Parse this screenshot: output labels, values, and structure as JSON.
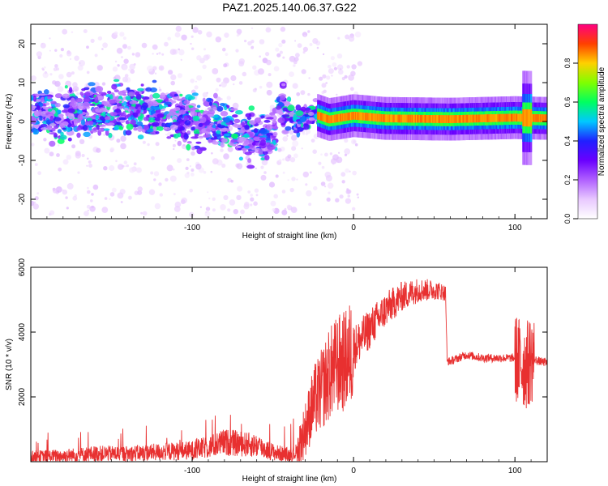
{
  "title": "PAZ1.2025.140.06.37.G22",
  "chart_data": [
    {
      "type": "heatmap",
      "xlabel": "Height of straight line (km)",
      "ylabel": "Frequency (Hz)",
      "xlim": [
        -200,
        120
      ],
      "ylim": [
        -25,
        25
      ],
      "xticks": [
        -100,
        0,
        100
      ],
      "yticks": [
        -20,
        -10,
        0,
        10,
        20
      ],
      "colorbar": {
        "label": "Normalized spectral amplitude",
        "range": [
          0.0,
          1.0
        ],
        "ticks": [
          "0.0",
          "0.2",
          "0.4",
          "0.6",
          "0.8"
        ],
        "colormap": [
          "#ffffff",
          "#e8c8ff",
          "#b060ff",
          "#6a00ff",
          "#2020ff",
          "#00c8ff",
          "#00ff60",
          "#80ff00",
          "#ffd000",
          "#ff4000",
          "#ff0080"
        ]
      },
      "ridge": [
        {
          "x": -200,
          "y": 2.0
        },
        {
          "x": -180,
          "y": 1.5
        },
        {
          "x": -160,
          "y": 3.0
        },
        {
          "x": -140,
          "y": 3.5
        },
        {
          "x": -120,
          "y": 2.0
        },
        {
          "x": -100,
          "y": 0.5
        },
        {
          "x": -80,
          "y": -1.0
        },
        {
          "x": -60,
          "y": -4.0
        },
        {
          "x": -50,
          "y": -4.5
        },
        {
          "x": -45,
          "y": 4.5
        },
        {
          "x": -35,
          "y": 0.0
        },
        {
          "x": -25,
          "y": 2.0
        },
        {
          "x": -15,
          "y": 0.5
        },
        {
          "x": 0,
          "y": 1.5
        },
        {
          "x": 20,
          "y": 0.8
        },
        {
          "x": 60,
          "y": 0.6
        },
        {
          "x": 100,
          "y": 1.0
        },
        {
          "x": 120,
          "y": 0.8
        }
      ]
    },
    {
      "type": "line",
      "xlabel": "Height of straight line (km)",
      "ylabel": "SNR (10 * v/v)",
      "xlim": [
        -200,
        120
      ],
      "ylim": [
        0,
        6000
      ],
      "xticks": [
        -100,
        0,
        100
      ],
      "yticks": [
        2000,
        4000,
        6000
      ],
      "color": "#e83030",
      "series": [
        {
          "x": [
            -200,
            -180,
            -160,
            -140,
            -120,
            -100,
            -90,
            -80,
            -70,
            -60,
            -50,
            -40,
            -35,
            -30,
            -25,
            -20,
            -15,
            -10,
            -5,
            0,
            10,
            20,
            30,
            40,
            50,
            55,
            57,
            58,
            60,
            70,
            80,
            90,
            100,
            105,
            108,
            110,
            115,
            120
          ],
          "y": [
            150,
            180,
            250,
            250,
            300,
            350,
            450,
            600,
            550,
            500,
            300,
            200,
            300,
            1000,
            1800,
            2200,
            2700,
            3000,
            3100,
            3500,
            4100,
            4700,
            5100,
            5300,
            5300,
            5250,
            5200,
            3100,
            3100,
            3300,
            3200,
            3200,
            3200,
            3000,
            3000,
            3200,
            3100,
            3050
          ]
        }
      ]
    }
  ]
}
